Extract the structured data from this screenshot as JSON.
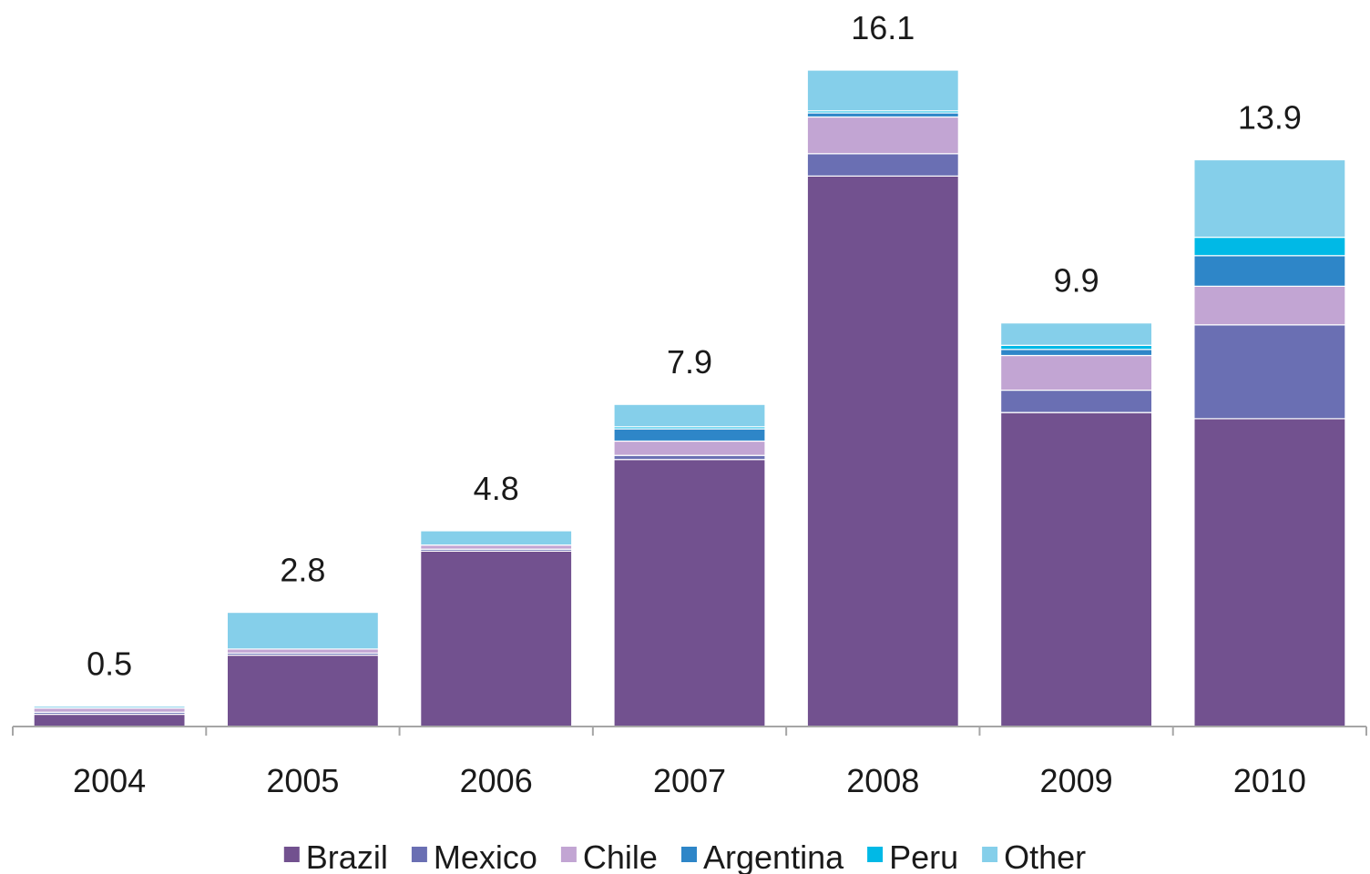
{
  "chart_data": {
    "type": "bar",
    "stacked": true,
    "categories": [
      "2004",
      "2005",
      "2006",
      "2007",
      "2008",
      "2009",
      "2010"
    ],
    "totals": [
      "0.5",
      "2.8",
      "4.8",
      "7.9",
      "16.1",
      "9.9",
      "13.9"
    ],
    "series": [
      {
        "name": "Brazil",
        "color": "#72518F",
        "values": [
          0.3,
          1.75,
          4.3,
          6.55,
          13.5,
          7.7,
          7.55
        ]
      },
      {
        "name": "Mexico",
        "color": "#6A6FB3",
        "values": [
          0.05,
          0.05,
          0.05,
          0.1,
          0.55,
          0.55,
          2.3
        ]
      },
      {
        "name": "Chile",
        "color": "#C2A5D3",
        "values": [
          0.1,
          0.1,
          0.1,
          0.35,
          0.9,
          0.85,
          0.95
        ]
      },
      {
        "name": "Argentina",
        "color": "#2E86C8",
        "values": [
          0.0,
          0.0,
          0.0,
          0.3,
          0.1,
          0.15,
          0.75
        ]
      },
      {
        "name": "Peru",
        "color": "#00B9E6",
        "values": [
          0.0,
          0.0,
          0.0,
          0.05,
          0.05,
          0.1,
          0.45
        ]
      },
      {
        "name": "Other",
        "color": "#85CFEA",
        "values": [
          0.05,
          0.9,
          0.35,
          0.55,
          1.0,
          0.55,
          1.9
        ]
      }
    ],
    "ylim": [
      0,
      16.1
    ],
    "legend": "bottom",
    "grid": false
  }
}
